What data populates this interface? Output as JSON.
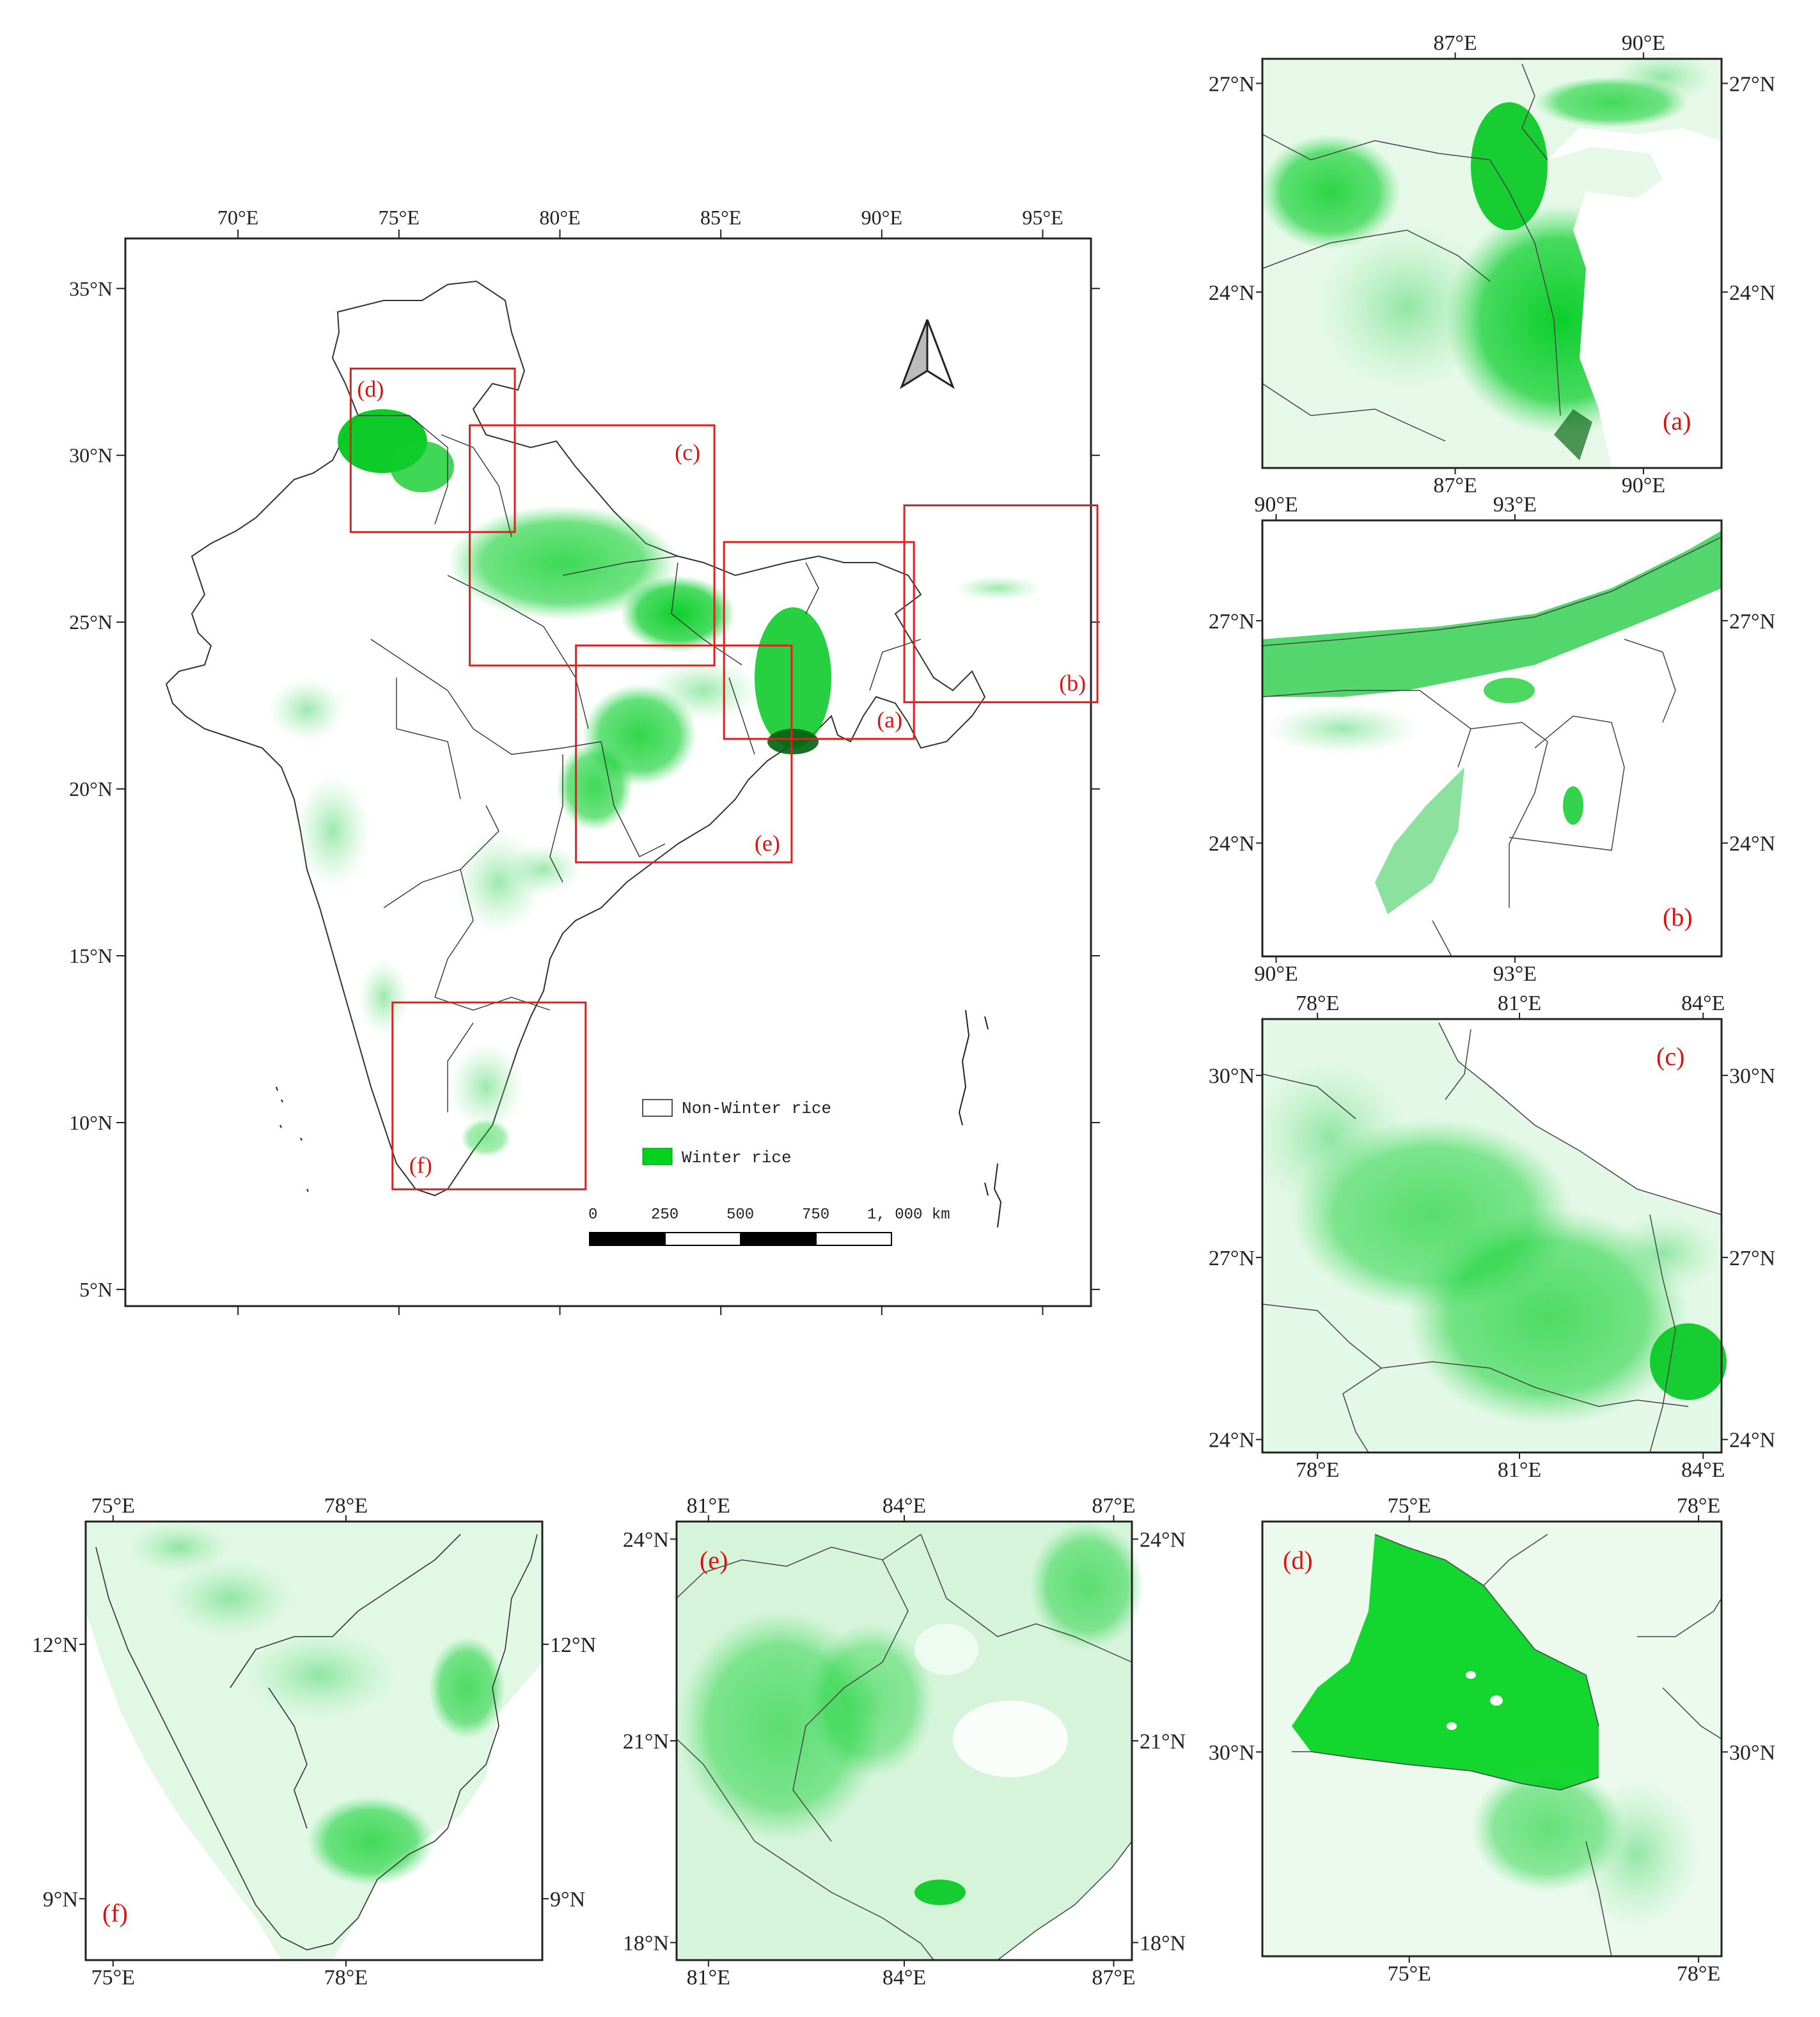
{
  "main_map": {
    "lon_ticks": [
      "70°E",
      "75°E",
      "80°E",
      "85°E",
      "90°E",
      "95°E"
    ],
    "lat_ticks": [
      "35°N",
      "30°N",
      "25°N",
      "20°N",
      "15°N",
      "10°N",
      "5°N"
    ],
    "lon_range": [
      66.5,
      96.5
    ],
    "lat_range": [
      4.5,
      36.5
    ],
    "region_boxes": [
      {
        "label": "(d)",
        "lon": [
          73.5,
          78.6
        ],
        "lat": [
          27.7,
          32.6
        ]
      },
      {
        "label": "(c)",
        "lon": [
          77.2,
          84.8
        ],
        "lat": [
          23.7,
          30.9
        ]
      },
      {
        "label": "(a)",
        "lon": [
          85.1,
          91.0
        ],
        "lat": [
          21.5,
          27.4
        ]
      },
      {
        "label": "(b)",
        "lon": [
          90.7,
          96.7
        ],
        "lat": [
          22.6,
          28.5
        ]
      },
      {
        "label": "(e)",
        "lon": [
          80.5,
          87.2
        ],
        "lat": [
          17.8,
          24.3
        ]
      },
      {
        "label": "(f)",
        "lon": [
          74.8,
          80.8
        ],
        "lat": [
          8.0,
          13.6
        ]
      }
    ]
  },
  "legend": {
    "items": [
      {
        "label": "Non-Winter rice",
        "color": "#ffffff"
      },
      {
        "label": "Winter rice",
        "color": "#00d21e"
      }
    ]
  },
  "scale_bar": {
    "labels": [
      "0",
      "250",
      "500",
      "750",
      "1, 000 km"
    ]
  },
  "north_arrow": {
    "icon": "north-arrow-icon"
  },
  "panels": {
    "a": {
      "label": "(a)",
      "top_ticks": [
        "87°E",
        "90°E"
      ],
      "bottom_ticks": [
        "87°E",
        "90°E"
      ],
      "left_ticks": [
        "27°N",
        "24°N"
      ],
      "right_ticks": [
        "27°N",
        "24°N"
      ]
    },
    "b": {
      "label": "(b)",
      "top_ticks": [
        "90°E",
        "93°E"
      ],
      "bottom_ticks": [
        "90°E",
        "93°E"
      ],
      "right_ticks": [
        "27°N",
        "24°N"
      ],
      "left_ticks": [
        "27°N",
        "24°N"
      ]
    },
    "c": {
      "label": "(c)",
      "top_ticks": [
        "78°E",
        "81°E",
        "84°E"
      ],
      "bottom_ticks": [
        "78°E",
        "81°E",
        "84°E"
      ],
      "left_ticks": [
        "30°N",
        "27°N",
        "24°N"
      ],
      "right_ticks": [
        "30°N",
        "27°N",
        "24°N"
      ]
    },
    "d": {
      "label": "(d)",
      "top_ticks": [
        "75°E",
        "78°E"
      ],
      "bottom_ticks": [
        "75°E",
        "78°E"
      ],
      "left_ticks": [
        "30°N"
      ],
      "right_ticks": [
        "30°N"
      ]
    },
    "e": {
      "label": "(e)",
      "top_ticks": [
        "81°E",
        "84°E",
        "87°E"
      ],
      "bottom_ticks": [
        "81°E",
        "84°E",
        "87°E"
      ],
      "left_ticks": [
        "24°N",
        "21°N",
        "18°N"
      ],
      "right_ticks": [
        "24°N",
        "21°N",
        "18°N"
      ]
    },
    "f": {
      "label": "(f)",
      "top_ticks": [
        "75°E",
        "78°E"
      ],
      "bottom_ticks": [
        "75°E",
        "78°E"
      ],
      "left_ticks": [
        "12°N",
        "9°N"
      ],
      "right_ticks": [
        "12°N",
        "9°N"
      ]
    }
  }
}
